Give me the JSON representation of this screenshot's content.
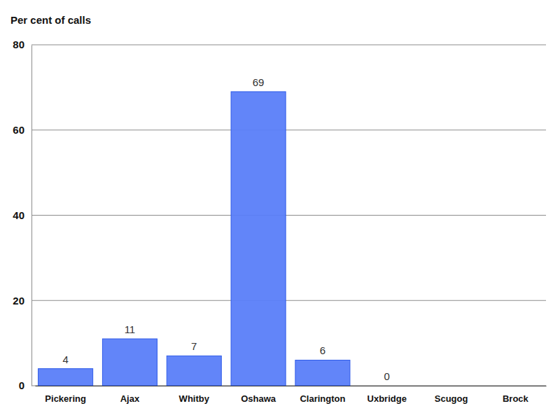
{
  "chart_data": {
    "type": "bar",
    "y_label": "Per cent of calls",
    "categories": [
      "Pickering",
      "Ajax",
      "Whitby",
      "Oshawa",
      "Clarington",
      "Uxbridge",
      "Scugog",
      "Brock"
    ],
    "values": [
      4,
      11,
      7,
      69,
      6,
      0,
      null,
      null
    ],
    "color": "#5a7ef9",
    "ylim": [
      0,
      80
    ],
    "yticks": [
      0,
      20,
      40,
      60,
      80
    ],
    "grid": true,
    "data_labels": true
  }
}
